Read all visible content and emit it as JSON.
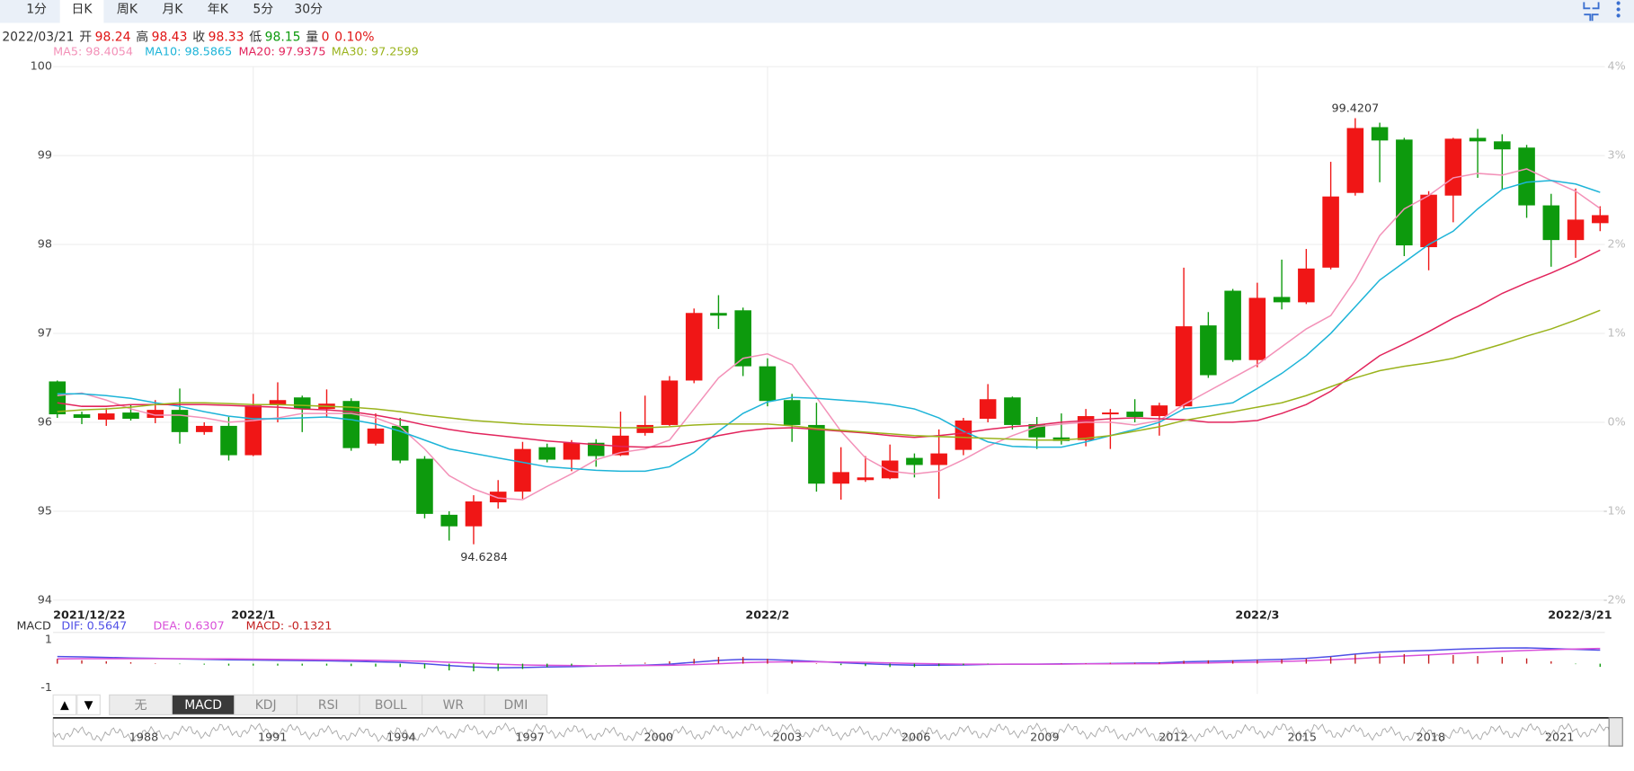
{
  "toolbar": {
    "tabs": [
      "1分",
      "日K",
      "周K",
      "月K",
      "年K",
      "5分",
      "30分"
    ],
    "active": 1
  },
  "info": {
    "date": "2022/03/21",
    "open_label": "开",
    "open": 98.24,
    "high_label": "高",
    "high": 98.43,
    "close_label": "收",
    "close": 98.33,
    "low_label": "低",
    "low": 98.15,
    "volume_label": "量",
    "volume": 0,
    "change": "0.10%"
  },
  "chart_data": [
    {
      "type": "candlestick",
      "categories": [
        "2021/12/22",
        null,
        null,
        null,
        null,
        null,
        null,
        null,
        "2022/1",
        null,
        null,
        null,
        null,
        null,
        null,
        null,
        null,
        null,
        null,
        null,
        null,
        null,
        null,
        null,
        null,
        null,
        null,
        null,
        null,
        "2022/2",
        null,
        null,
        null,
        null,
        null,
        null,
        null,
        null,
        null,
        null,
        null,
        null,
        null,
        null,
        null,
        null,
        null,
        null,
        null,
        "2022/3",
        null,
        null,
        null,
        null,
        null,
        null,
        null,
        null,
        null,
        null,
        null,
        null,
        null,
        "2022/3/21"
      ],
      "open": [
        96.46,
        96.09,
        96.03,
        96.11,
        96.05,
        96.14,
        95.89,
        95.96,
        95.63,
        96.2,
        96.28,
        96.15,
        96.24,
        95.76,
        95.96,
        95.59,
        94.96,
        94.83,
        95.1,
        95.22,
        95.72,
        95.58,
        95.77,
        95.63,
        95.88,
        95.97,
        96.47,
        97.23,
        97.26,
        96.63,
        96.25,
        95.97,
        95.31,
        95.35,
        95.37,
        95.6,
        95.52,
        95.69,
        96.04,
        96.28,
        95.98,
        95.83,
        95.8,
        96.09,
        96.12,
        96.07,
        96.18,
        97.09,
        97.48,
        96.7,
        97.41,
        97.35,
        97.74,
        98.58,
        99.32,
        99.18,
        97.97,
        98.55,
        99.2,
        99.16,
        99.09,
        98.44,
        98.05,
        98.24
      ],
      "high": [
        96.47,
        96.12,
        96.16,
        96.2,
        96.25,
        96.38,
        96.0,
        96.06,
        96.32,
        96.45,
        96.3,
        96.37,
        96.27,
        96.1,
        96.05,
        95.62,
        95.0,
        95.18,
        95.35,
        95.78,
        95.76,
        95.8,
        95.81,
        96.12,
        96.3,
        96.52,
        97.28,
        97.43,
        97.29,
        96.72,
        96.32,
        96.22,
        95.72,
        95.62,
        95.75,
        95.65,
        95.92,
        96.05,
        96.43,
        96.29,
        96.06,
        96.1,
        96.15,
        96.15,
        96.26,
        96.22,
        97.74,
        97.24,
        97.5,
        97.57,
        97.83,
        97.95,
        98.93,
        99.4207,
        99.37,
        99.2,
        98.6,
        99.2,
        99.3,
        99.24,
        99.12,
        98.57,
        98.63,
        98.43
      ],
      "low": [
        96.05,
        95.98,
        95.96,
        96.02,
        95.99,
        95.76,
        95.86,
        95.57,
        95.62,
        96.0,
        95.89,
        96.05,
        95.68,
        95.74,
        95.54,
        94.92,
        94.67,
        94.6284,
        95.03,
        95.14,
        95.55,
        95.45,
        95.5,
        95.62,
        95.85,
        95.96,
        96.44,
        97.05,
        96.52,
        96.18,
        95.78,
        95.22,
        95.13,
        95.33,
        95.36,
        95.38,
        95.14,
        95.63,
        96.0,
        95.92,
        95.7,
        95.75,
        95.73,
        95.7,
        96.0,
        95.85,
        96.15,
        96.5,
        96.68,
        96.62,
        97.27,
        97.33,
        97.72,
        98.55,
        98.7,
        97.87,
        97.71,
        98.25,
        98.75,
        98.62,
        98.3,
        97.75,
        97.85,
        98.15
      ],
      "close": [
        96.09,
        96.05,
        96.1,
        96.04,
        96.14,
        95.89,
        95.96,
        95.63,
        96.19,
        96.25,
        96.15,
        96.21,
        95.71,
        95.93,
        95.57,
        94.97,
        94.83,
        95.11,
        95.22,
        95.7,
        95.58,
        95.77,
        95.62,
        95.85,
        95.97,
        96.47,
        97.23,
        97.2,
        96.63,
        96.24,
        95.97,
        95.31,
        95.44,
        95.38,
        95.57,
        95.52,
        95.65,
        96.02,
        96.26,
        95.97,
        95.83,
        95.79,
        96.07,
        96.11,
        96.06,
        96.19,
        97.08,
        96.53,
        96.7,
        97.4,
        97.35,
        97.73,
        98.54,
        99.31,
        99.17,
        97.99,
        98.56,
        99.19,
        99.16,
        99.07,
        98.44,
        98.05,
        98.28,
        98.33
      ],
      "up_color": "#f01616",
      "down_color": "#0d9a0d",
      "ylim": [
        94,
        100
      ],
      "yticks": [
        94,
        95,
        96,
        97,
        98,
        99,
        100
      ],
      "y2lim": [
        -2,
        4
      ],
      "y2ticks": [
        {
          "value": 4,
          "label": "4%"
        },
        {
          "value": 3,
          "label": "3%"
        },
        {
          "value": 2,
          "label": "2%"
        },
        {
          "value": 1,
          "label": "1%"
        },
        {
          "value": 0,
          "label": "0%"
        },
        {
          "value": -1,
          "label": "-1%"
        },
        {
          "value": -2,
          "label": "-2%"
        }
      ],
      "grid": true,
      "series": [
        {
          "name": "MA5: 98.4054",
          "color": "#f391b8",
          "values": [
            96.3,
            96.33,
            96.25,
            96.15,
            96.08,
            96.08,
            96.05,
            96.0,
            96.02,
            96.05,
            96.1,
            96.1,
            96.1,
            96.05,
            95.95,
            95.7,
            95.4,
            95.25,
            95.15,
            95.13,
            95.28,
            95.42,
            95.58,
            95.66,
            95.7,
            95.8,
            96.15,
            96.5,
            96.72,
            96.77,
            96.65,
            96.28,
            95.9,
            95.6,
            95.45,
            95.42,
            95.45,
            95.58,
            95.73,
            95.85,
            95.95,
            95.98,
            96.0,
            96.0,
            95.97,
            96.02,
            96.2,
            96.35,
            96.5,
            96.65,
            96.85,
            97.05,
            97.2,
            97.6,
            98.1,
            98.4,
            98.55,
            98.75,
            98.8,
            98.78,
            98.85,
            98.72,
            98.6,
            98.4054
          ]
        },
        {
          "name": "MA10: 98.5865",
          "color": "#1db4d8",
          "values": [
            96.32,
            96.32,
            96.3,
            96.27,
            96.22,
            96.18,
            96.12,
            96.07,
            96.04,
            96.04,
            96.05,
            96.06,
            96.03,
            95.98,
            95.9,
            95.8,
            95.7,
            95.65,
            95.6,
            95.55,
            95.5,
            95.48,
            95.46,
            95.45,
            95.45,
            95.5,
            95.66,
            95.9,
            96.1,
            96.23,
            96.28,
            96.27,
            96.25,
            96.23,
            96.2,
            96.15,
            96.05,
            95.9,
            95.78,
            95.73,
            95.72,
            95.72,
            95.78,
            95.85,
            95.92,
            96.0,
            96.15,
            96.18,
            96.22,
            96.38,
            96.55,
            96.75,
            97.0,
            97.3,
            97.6,
            97.8,
            98.0,
            98.15,
            98.4,
            98.62,
            98.7,
            98.72,
            98.68,
            98.5865
          ]
        },
        {
          "name": "MA20: 97.9375",
          "color": "#e2245c",
          "values": [
            96.22,
            96.18,
            96.18,
            96.2,
            96.2,
            96.2,
            96.2,
            96.19,
            96.18,
            96.17,
            96.15,
            96.14,
            96.12,
            96.08,
            96.03,
            95.97,
            95.92,
            95.88,
            95.85,
            95.82,
            95.79,
            95.77,
            95.75,
            95.73,
            95.72,
            95.73,
            95.78,
            95.85,
            95.9,
            95.93,
            95.94,
            95.92,
            95.9,
            95.88,
            95.85,
            95.83,
            95.85,
            95.88,
            95.92,
            95.95,
            95.97,
            96.0,
            96.02,
            96.04,
            96.05,
            96.04,
            96.03,
            96.0,
            96.0,
            96.02,
            96.1,
            96.2,
            96.35,
            96.55,
            96.75,
            96.88,
            97.02,
            97.17,
            97.3,
            97.45,
            97.57,
            97.68,
            97.8,
            97.9375
          ]
        },
        {
          "name": "MA30: 97.2599",
          "color": "#9ab31c",
          "values": [
            96.12,
            96.14,
            96.15,
            96.17,
            96.2,
            96.22,
            96.22,
            96.21,
            96.2,
            96.2,
            96.19,
            96.18,
            96.17,
            96.15,
            96.12,
            96.08,
            96.05,
            96.02,
            96.0,
            95.98,
            95.97,
            95.96,
            95.95,
            95.94,
            95.94,
            95.95,
            95.97,
            95.98,
            95.98,
            95.98,
            95.96,
            95.93,
            95.91,
            95.89,
            95.87,
            95.85,
            95.84,
            95.83,
            95.82,
            95.81,
            95.8,
            95.8,
            95.82,
            95.85,
            95.9,
            95.95,
            96.02,
            96.07,
            96.12,
            96.17,
            96.22,
            96.3,
            96.4,
            96.5,
            96.58,
            96.63,
            96.67,
            96.72,
            96.8,
            96.88,
            96.97,
            97.05,
            97.15,
            97.2599
          ]
        }
      ]
    },
    {
      "type": "macd",
      "title": "MACD",
      "ylim": [
        -1.3,
        1.3
      ],
      "yticks": [
        1,
        -1
      ],
      "series": [
        {
          "name": "DIF: 0.5647",
          "color": "#4f4fe6",
          "kind": "line",
          "values": [
            0.3,
            0.28,
            0.26,
            0.24,
            0.22,
            0.2,
            0.18,
            0.16,
            0.15,
            0.14,
            0.13,
            0.12,
            0.1,
            0.08,
            0.05,
            0.0,
            -0.08,
            -0.14,
            -0.17,
            -0.16,
            -0.14,
            -0.12,
            -0.1,
            -0.08,
            -0.06,
            -0.02,
            0.06,
            0.14,
            0.18,
            0.17,
            0.14,
            0.09,
            0.04,
            0.0,
            -0.04,
            -0.06,
            -0.06,
            -0.05,
            -0.03,
            -0.02,
            -0.02,
            -0.01,
            0.0,
            0.01,
            0.02,
            0.03,
            0.08,
            0.1,
            0.12,
            0.15,
            0.18,
            0.22,
            0.3,
            0.4,
            0.48,
            0.52,
            0.55,
            0.6,
            0.63,
            0.65,
            0.66,
            0.63,
            0.6,
            0.5647
          ]
        },
        {
          "name": "DEA: 0.6307",
          "color": "#d94fd9",
          "kind": "line",
          "values": [
            0.2,
            0.21,
            0.21,
            0.21,
            0.21,
            0.21,
            0.2,
            0.2,
            0.19,
            0.18,
            0.17,
            0.16,
            0.15,
            0.14,
            0.12,
            0.1,
            0.06,
            0.02,
            -0.02,
            -0.05,
            -0.07,
            -0.08,
            -0.09,
            -0.09,
            -0.08,
            -0.07,
            -0.04,
            0.0,
            0.04,
            0.07,
            0.08,
            0.08,
            0.07,
            0.05,
            0.03,
            0.01,
            -0.01,
            -0.02,
            -0.02,
            -0.02,
            -0.02,
            -0.02,
            -0.01,
            -0.01,
            0.0,
            0.0,
            0.02,
            0.03,
            0.05,
            0.07,
            0.09,
            0.12,
            0.16,
            0.21,
            0.27,
            0.32,
            0.37,
            0.42,
            0.47,
            0.51,
            0.55,
            0.58,
            0.61,
            0.6307
          ]
        },
        {
          "name": "MACD: -0.1321",
          "color": "#c42020",
          "neg_color": "#0d9a0d",
          "kind": "bar",
          "values": [
            0.2,
            0.14,
            0.1,
            0.06,
            0.02,
            -0.02,
            -0.04,
            -0.08,
            -0.08,
            -0.08,
            -0.08,
            -0.08,
            -0.1,
            -0.12,
            -0.14,
            -0.2,
            -0.28,
            -0.32,
            -0.3,
            -0.22,
            -0.14,
            -0.08,
            -0.02,
            0.02,
            0.04,
            0.1,
            0.2,
            0.28,
            0.28,
            0.2,
            0.12,
            0.02,
            -0.06,
            -0.1,
            -0.14,
            -0.14,
            -0.1,
            -0.06,
            -0.02,
            0.0,
            0.0,
            0.02,
            0.02,
            0.04,
            0.04,
            0.06,
            0.12,
            0.14,
            0.14,
            0.16,
            0.18,
            0.2,
            0.28,
            0.38,
            0.42,
            0.4,
            0.36,
            0.36,
            0.32,
            0.28,
            0.22,
            0.1,
            -0.02,
            -0.1321
          ]
        }
      ]
    }
  ],
  "indicator_tabs": {
    "arrows": [
      "▲",
      "▼"
    ],
    "tabs": [
      "无",
      "MACD",
      "KDJ",
      "RSI",
      "BOLL",
      "WR",
      "DMI"
    ],
    "active": 1
  },
  "navigator": {
    "labels": [
      "1988",
      "1991",
      "1994",
      "1997",
      "2000",
      "2003",
      "2006",
      "2009",
      "2012",
      "2015",
      "2018",
      "2021"
    ]
  }
}
